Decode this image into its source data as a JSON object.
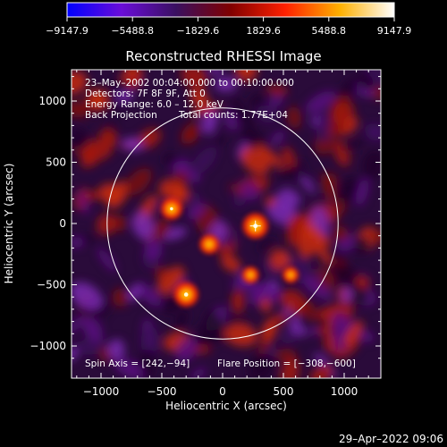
{
  "chart_data": {
    "type": "heatmap",
    "title": "Reconstructed RHESSI Image",
    "xlabel": "Heliocentric X (arcsec)",
    "ylabel": "Heliocentric Y (arcsec)",
    "xlim": [
      -1300,
      1300
    ],
    "ylim": [
      -1100,
      1300
    ],
    "x_ticks": [
      -1000,
      -500,
      0,
      500,
      1000
    ],
    "x_tick_labels": [
      "−1000",
      "−500",
      "0",
      "500",
      "1000"
    ],
    "y_ticks": [
      -1000,
      -500,
      0,
      500,
      1000
    ],
    "y_tick_labels": [
      "−1000",
      "−500",
      "0",
      "500",
      "1000"
    ],
    "colorbar": {
      "min": -9147.9,
      "max": 9147.9,
      "tick_values": [
        -9147.9,
        -5488.8,
        -1829.6,
        1829.6,
        5488.8,
        9147.9
      ],
      "tick_labels": [
        "−9147.9",
        "−5488.8",
        "−1829.6",
        "1829.6",
        "5488.8",
        "9147.9"
      ],
      "colors": [
        "#0000ff",
        "#6a0dd8",
        "#3a1060",
        "#800000",
        "#ff2000",
        "#ffb000",
        "#ffffff"
      ]
    },
    "solar_limb_radius_arcsec": 950,
    "flare_position": [
      -308,
      -600
    ],
    "center_marker": [
      270,
      -20
    ],
    "sources": [
      {
        "x": 270,
        "y": -20,
        "level": 9147.9
      },
      {
        "x": -300,
        "y": -580,
        "level": 8500
      },
      {
        "x": -420,
        "y": 120,
        "level": 6500
      },
      {
        "x": -110,
        "y": -170,
        "level": 5200
      },
      {
        "x": 230,
        "y": -420,
        "level": 3500
      },
      {
        "x": 560,
        "y": -420,
        "level": 3000
      }
    ],
    "annotations": {
      "time_range": "23–May–2002 00:04:00.000 to 00:10:00.000",
      "detectors": "Detectors: 7F 8F 9F, Att 0",
      "energy_range": "Energy Range: 6.0 – 12.0 keV",
      "method": "Back Projection",
      "total_counts": "Total counts: 1.77E+04",
      "spin_axis": "Spin Axis = [242,−94]",
      "flare_position_label": "Flare Position = [−308,−600]"
    }
  },
  "timestamp": "29–Apr–2022 09:06"
}
